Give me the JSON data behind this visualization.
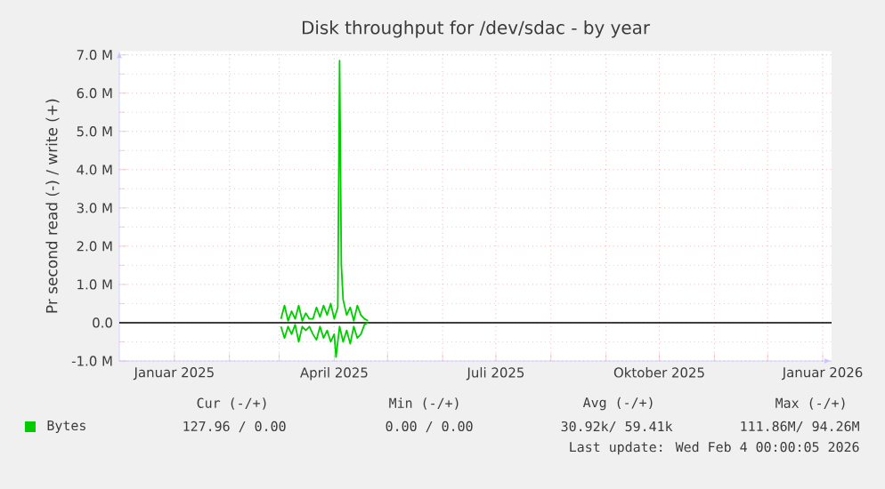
{
  "chart_data": {
    "type": "line",
    "title": "Disk throughput for /dev/sdac - by year",
    "ylabel": "Pr second read (-) / write (+)",
    "xlim": [
      "2024-12-01",
      "2026-01-06"
    ],
    "xticks": [
      {
        "value": "2025-01-01",
        "label": "Januar 2025"
      },
      {
        "value": "2025-02-01",
        "label": null
      },
      {
        "value": "2025-03-01",
        "label": null
      },
      {
        "value": "2025-04-01",
        "label": "April 2025"
      },
      {
        "value": "2025-05-01",
        "label": null
      },
      {
        "value": "2025-06-01",
        "label": null
      },
      {
        "value": "2025-07-01",
        "label": "Juli 2025"
      },
      {
        "value": "2025-08-01",
        "label": null
      },
      {
        "value": "2025-09-01",
        "label": null
      },
      {
        "value": "2025-10-01",
        "label": "Oktober 2025"
      },
      {
        "value": "2025-11-01",
        "label": null
      },
      {
        "value": "2025-12-01",
        "label": null
      },
      {
        "value": "2026-01-01",
        "label": "Januar 2026"
      }
    ],
    "ylim": [
      -1,
      7.1
    ],
    "yticks": [
      {
        "value": -1,
        "label": "-1.0 M"
      },
      {
        "value": 0,
        "label": "0.0"
      },
      {
        "value": 1,
        "label": "1.0 M"
      },
      {
        "value": 2,
        "label": "2.0 M"
      },
      {
        "value": 3,
        "label": "3.0 M"
      },
      {
        "value": 4,
        "label": "4.0 M"
      },
      {
        "value": 5,
        "label": "5.0 M"
      },
      {
        "value": 6,
        "label": "6.0 M"
      },
      {
        "value": 7,
        "label": "7.0 M"
      }
    ],
    "grid": true,
    "legend": "bottom left",
    "marker": "none",
    "line_style": "solid",
    "ref_lines": [
      {
        "axis": "y",
        "value": 0,
        "color": "#000000"
      }
    ],
    "series": [
      {
        "name": "Bytes",
        "color": "#00cc00",
        "x": [
          "2025-03-02",
          "2025-03-04",
          "2025-03-06",
          "2025-03-08",
          "2025-03-10",
          "2025-03-12",
          "2025-03-14",
          "2025-03-16",
          "2025-03-18",
          "2025-03-20",
          "2025-03-22",
          "2025-03-24",
          "2025-03-26",
          "2025-03-28",
          "2025-03-30",
          "2025-04-01",
          "2025-04-03",
          "2025-04-04",
          "2025-04-05",
          "2025-04-06",
          "2025-04-08",
          "2025-04-10",
          "2025-04-12",
          "2025-04-14",
          "2025-04-16",
          "2025-04-18",
          "2025-04-20"
        ],
        "values": [
          0.1,
          0.45,
          0.05,
          0.3,
          0.1,
          0.45,
          0.05,
          0.25,
          0.1,
          0.1,
          0.4,
          0.15,
          0.45,
          0.2,
          0.5,
          0.1,
          0.4,
          6.85,
          1.5,
          0.6,
          0.2,
          0.4,
          0.05,
          0.45,
          0.2,
          0.1,
          0.05
        ]
      },
      {
        "color": "#00cc00",
        "x": [
          "2025-03-02",
          "2025-03-04",
          "2025-03-06",
          "2025-03-08",
          "2025-03-10",
          "2025-03-12",
          "2025-03-14",
          "2025-03-16",
          "2025-03-18",
          "2025-03-20",
          "2025-03-22",
          "2025-03-24",
          "2025-03-26",
          "2025-03-28",
          "2025-03-30",
          "2025-04-01",
          "2025-04-02",
          "2025-04-04",
          "2025-04-06",
          "2025-04-08",
          "2025-04-10",
          "2025-04-12",
          "2025-04-14",
          "2025-04-16",
          "2025-04-18",
          "2025-04-20"
        ],
        "values": [
          -0.1,
          -0.4,
          -0.1,
          -0.3,
          -0.05,
          -0.5,
          -0.1,
          -0.2,
          -0.1,
          -0.3,
          -0.45,
          -0.1,
          -0.4,
          -0.2,
          -0.5,
          -0.3,
          -0.9,
          -0.1,
          -0.5,
          -0.2,
          -0.55,
          -0.1,
          -0.4,
          -0.3,
          -0.05,
          0
        ]
      }
    ],
    "annotations": [
      "Cur (-/+)",
      "Min (-/+)",
      "Avg (-/+)",
      "Max (-/+)",
      "127.96 / 0.00",
      "0.00 / 0.00",
      "30.92k/ 59.41k",
      "111.86M/ 94.26M",
      "Last update: Wed Feb 4 00:00:05 2026"
    ]
  }
}
